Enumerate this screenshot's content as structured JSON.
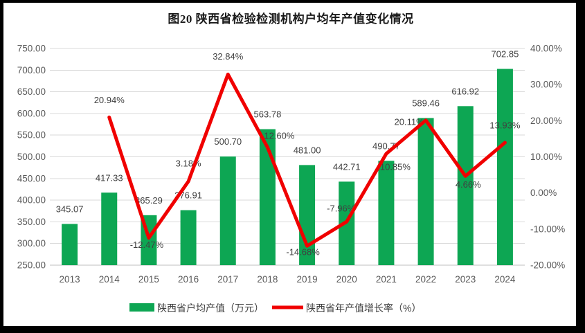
{
  "title": "图20  陕西省检验检测机构户均年产值变化情况",
  "chart_data": {
    "type": "bar+line combo",
    "title": "图20  陕西省检验检测机构户均年产值变化情况",
    "categories": [
      "2013",
      "2014",
      "2015",
      "2016",
      "2017",
      "2018",
      "2019",
      "2020",
      "2021",
      "2022",
      "2023",
      "2024"
    ],
    "series": [
      {
        "name": "陕西省户均产值（万元）",
        "type": "bar",
        "axis": "left",
        "color": "#0DA653",
        "values": [
          345.07,
          417.33,
          365.29,
          376.91,
          500.7,
          563.78,
          481.0,
          442.71,
          490.77,
          589.46,
          616.92,
          702.85
        ],
        "labels": [
          "345.07",
          "417.33",
          "365.29",
          "376.91",
          "500.70",
          "563.78",
          "481.00",
          "442.71",
          "490.77",
          "589.46",
          "616.92",
          "702.85"
        ]
      },
      {
        "name": "陕西省年产值增长率（%）",
        "type": "line",
        "axis": "right",
        "color": "#F00000",
        "values": [
          null,
          20.94,
          -12.47,
          3.18,
          32.84,
          12.6,
          -14.68,
          -7.96,
          10.85,
          20.11,
          4.66,
          13.93
        ],
        "labels": [
          null,
          "20.94%",
          "-12.47%",
          "3.18%",
          "32.84%",
          "12.60%",
          "-14.68%",
          "-7.96%",
          "10.85%",
          "20.11%",
          "4.66%",
          "13.93%"
        ]
      }
    ],
    "left_axis": {
      "min": 250,
      "max": 750,
      "step": 50,
      "ticks": [
        "750.00",
        "700.00",
        "650.00",
        "600.00",
        "550.00",
        "500.00",
        "450.00",
        "400.00",
        "350.00",
        "300.00",
        "250.00"
      ]
    },
    "right_axis": {
      "min": -20,
      "max": 40,
      "step": 10,
      "ticks": [
        "40.00%",
        "30.00%",
        "20.00%",
        "10.00%",
        "0.00%",
        "-10.00%",
        "-20.00%"
      ]
    },
    "grid": true,
    "legend_position": "bottom",
    "colors": {
      "bar": "#0DA653",
      "line": "#F00000",
      "gridline": "#D9D9D9",
      "axis_line": "#BFBFBF",
      "text": "#404040",
      "tick_text": "#595959"
    }
  },
  "legend": {
    "bar_label": "陕西省户均产值（万元）",
    "line_label": "陕西省年产值增长率（%）"
  }
}
